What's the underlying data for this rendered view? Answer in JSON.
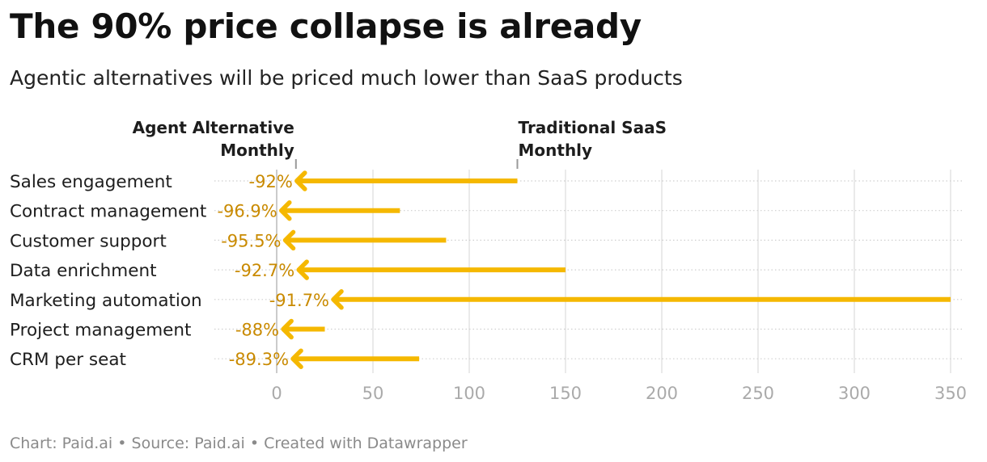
{
  "title": "The 90% price collapse is already",
  "subtitle": "Agentic alternatives will be priced much lower than SaaS products",
  "footer": {
    "chart_by": "Chart: Paid.ai",
    "source": "Source: Paid.ai",
    "created_with": "Created with Datawrapper",
    "separator": "•"
  },
  "colors": {
    "arrow": "#f5b800",
    "label": "#c98a00",
    "grid": "#dcdcdc",
    "axis_text": "#aaaaaa"
  },
  "chart_data": {
    "type": "arrow",
    "title": "The 90% price collapse is already",
    "subtitle": "Agentic alternatives will be priced much lower than SaaS products",
    "xlim": [
      0,
      355
    ],
    "xticks": [
      0,
      50,
      100,
      150,
      200,
      250,
      300,
      350
    ],
    "series_labels": {
      "start": [
        "Traditional SaaS",
        "Monthly"
      ],
      "end": [
        "Agent Alternative",
        "Monthly"
      ]
    },
    "categories": [
      "Sales engagement",
      "Contract management",
      "Customer support",
      "Data enrichment",
      "Marketing automation",
      "Project management",
      "CRM per seat"
    ],
    "saas_monthly": [
      125,
      64,
      88,
      150,
      350,
      25,
      74
    ],
    "agent_monthly": [
      10,
      2,
      4,
      11,
      29,
      3,
      8
    ],
    "change_labels": [
      "-92%",
      "-96.9%",
      "-95.5%",
      "-92.7%",
      "-91.7%",
      "-88%",
      "-89.3%"
    ]
  }
}
